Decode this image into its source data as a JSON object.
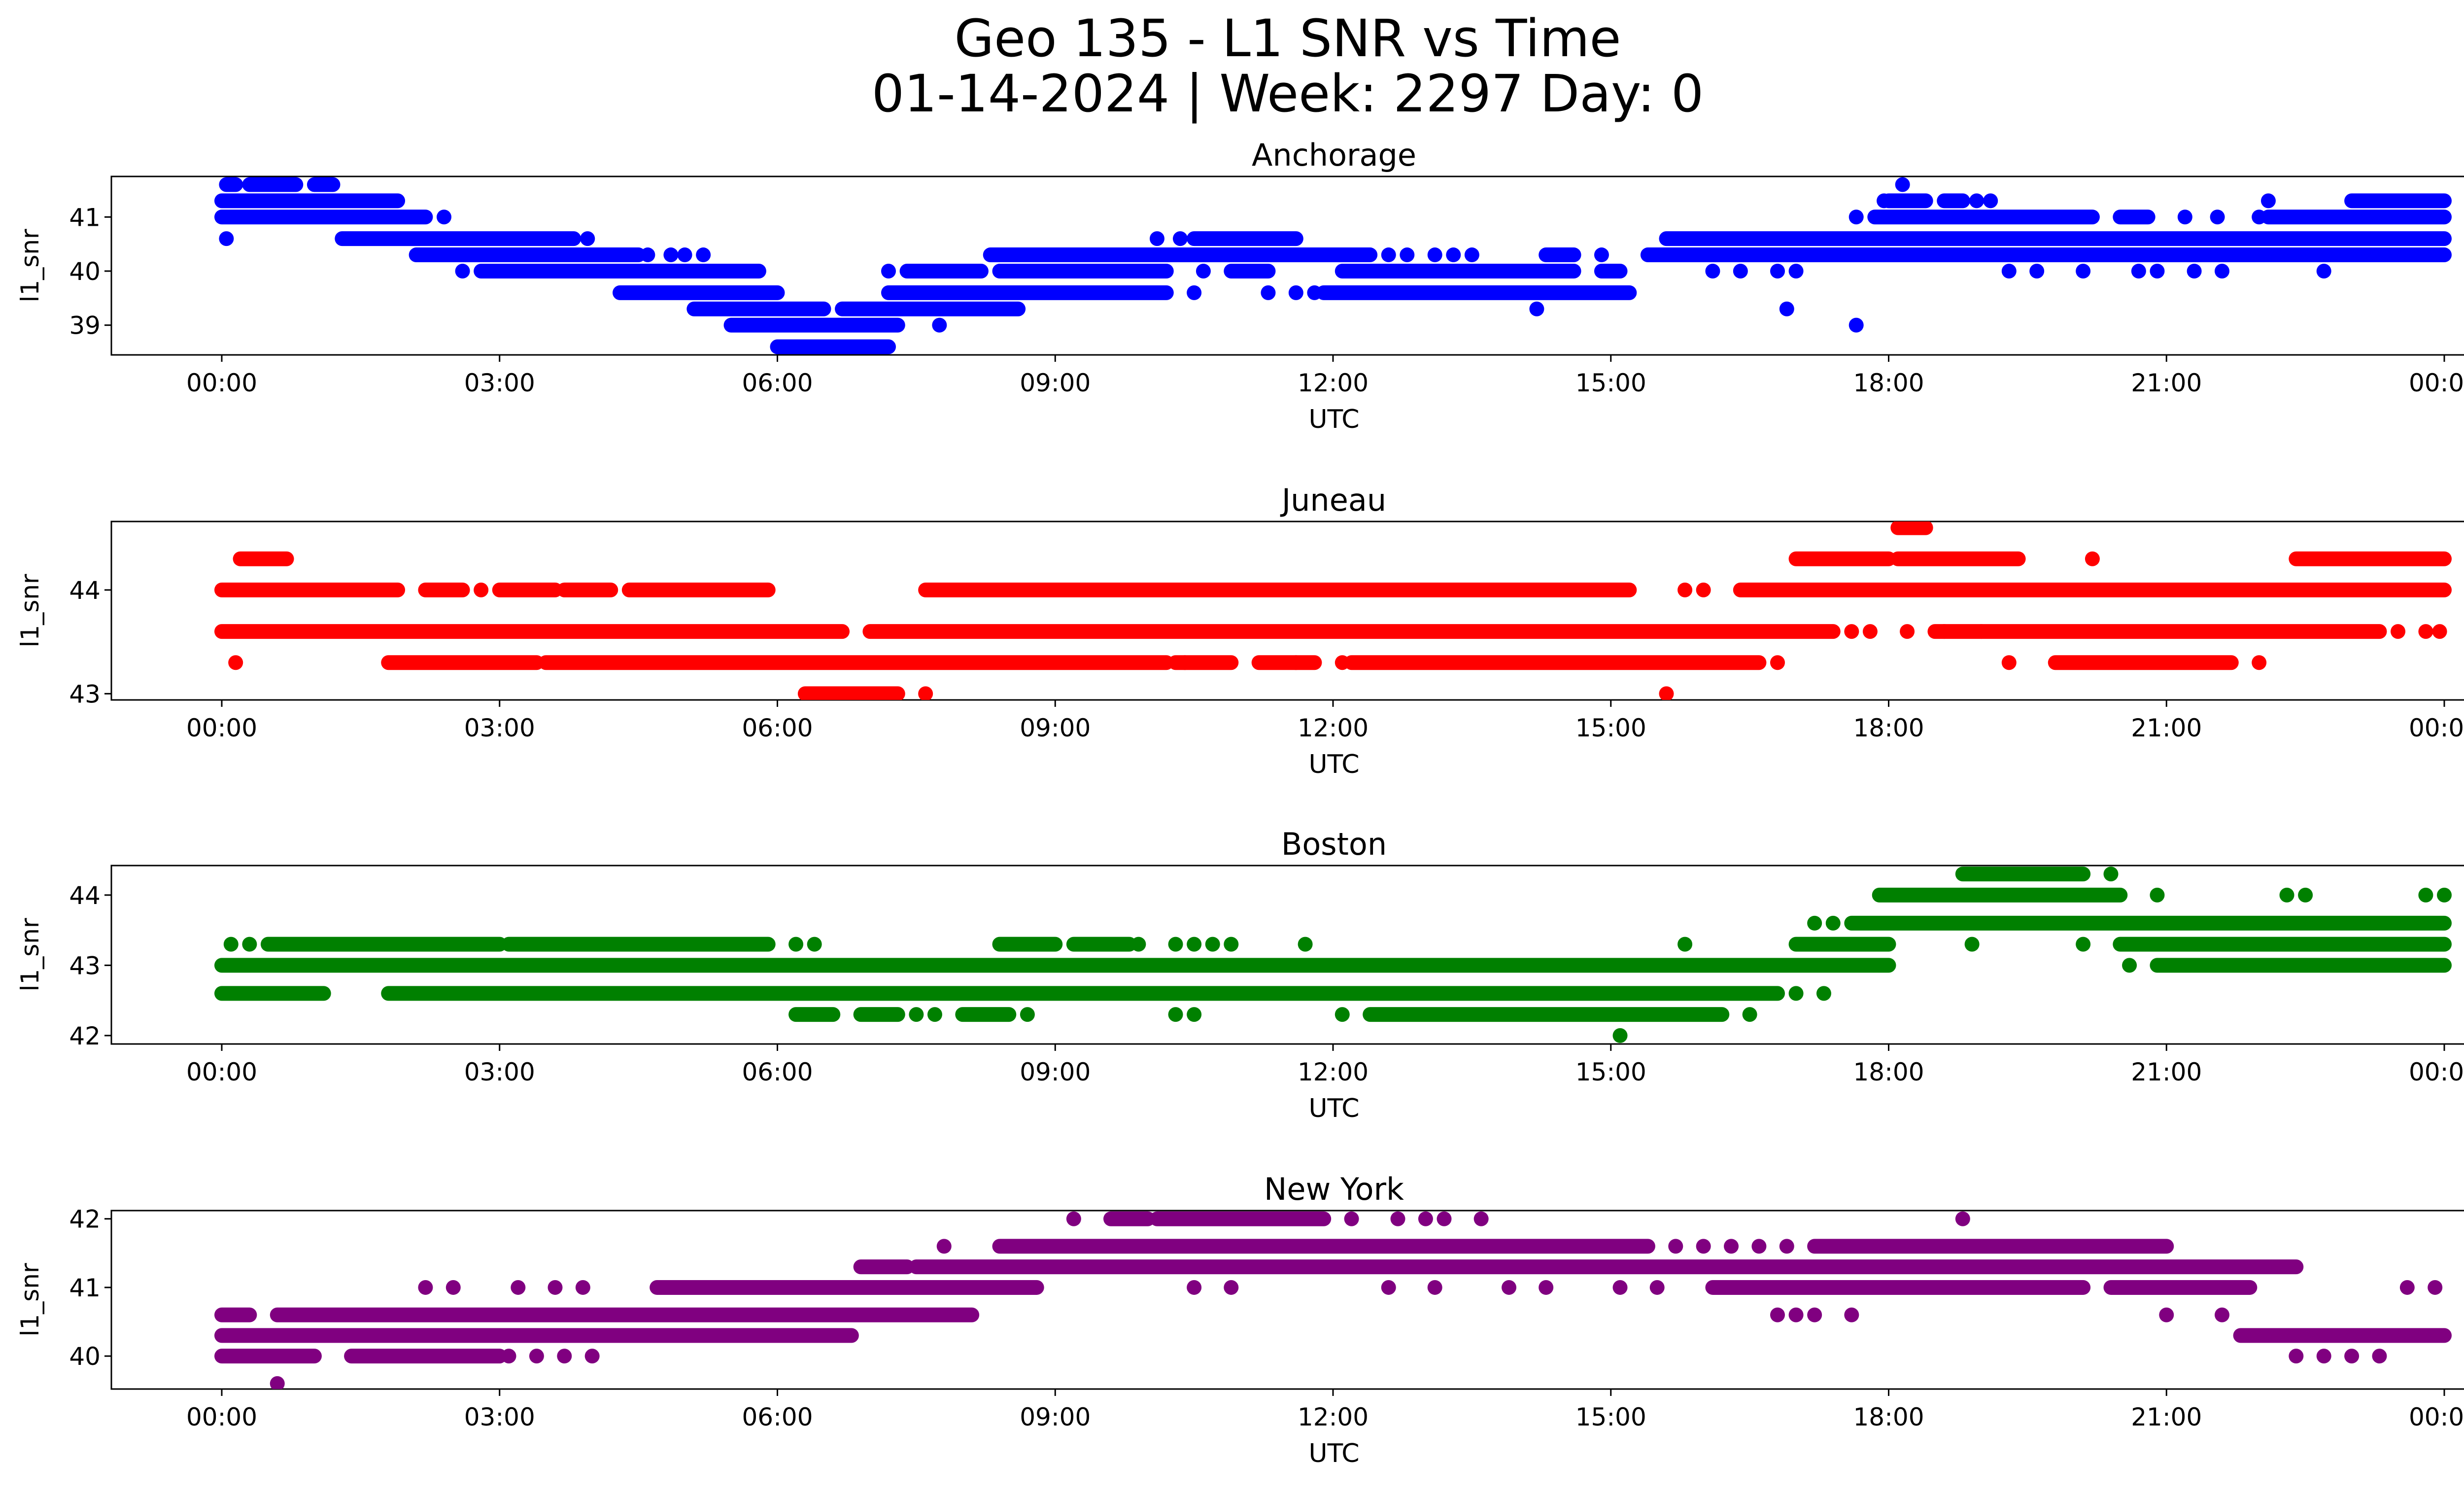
{
  "figure": {
    "title_line1": "Geo 135 - L1 SNR vs Time",
    "title_line2": "01-14-2024 | Week: 2297 Day: 0"
  },
  "chart_data": [
    {
      "type": "scatter",
      "title": "Anchorage",
      "xlabel": "UTC",
      "ylabel": "l1_snr",
      "color": "#0000ff",
      "x_ticks": [
        "00:00",
        "03:00",
        "06:00",
        "09:00",
        "12:00",
        "15:00",
        "18:00",
        "21:00",
        "00:00"
      ],
      "y_ticks": [
        39,
        40,
        41
      ],
      "ylim": [
        38.45,
        41.75
      ],
      "grid": false,
      "series": [
        {
          "rows": [
            {
              "y": 41.6,
              "ranges": [
                [
                  0.05,
                  0.15
                ],
                [
                  0.3,
                  0.8
                ],
                [
                  1.0,
                  1.2
                ]
              ],
              "points": [
                18.15
              ]
            },
            {
              "y": 41.3,
              "ranges": [
                [
                  0.0,
                  1.9
                ],
                [
                  18.0,
                  18.4
                ],
                [
                  18.6,
                  18.8
                ],
                [
                  23.0,
                  24.0
                ]
              ],
              "points": [
                17.95,
                18.95,
                19.1,
                22.1
              ]
            },
            {
              "y": 41.0,
              "ranges": [
                [
                  0.0,
                  2.2
                ],
                [
                  17.85,
                  20.2
                ],
                [
                  20.5,
                  20.8
                ],
                [
                  22.1,
                  24.0
                ]
              ],
              "points": [
                2.4,
                17.65,
                21.2,
                21.55,
                22.0
              ]
            },
            {
              "y": 40.6,
              "ranges": [
                [
                  1.3,
                  3.8
                ],
                [
                  10.5,
                  11.6
                ],
                [
                  15.6,
                  24.0
                ]
              ],
              "points": [
                0.05,
                3.95,
                10.1,
                10.35
              ]
            },
            {
              "y": 40.3,
              "ranges": [
                [
                  2.1,
                  4.5
                ],
                [
                  8.3,
                  12.4
                ],
                [
                  14.3,
                  14.6
                ],
                [
                  15.4,
                  24.0
                ]
              ],
              "points": [
                4.6,
                4.85,
                5.0,
                5.2,
                12.6,
                12.8,
                13.1,
                13.3,
                13.5,
                14.9
              ]
            },
            {
              "y": 40.0,
              "ranges": [
                [
                  2.8,
                  5.8
                ],
                [
                  7.4,
                  8.2
                ],
                [
                  8.4,
                  10.2
                ],
                [
                  10.9,
                  11.3
                ],
                [
                  12.1,
                  14.6
                ],
                [
                  14.9,
                  15.1
                ]
              ],
              "points": [
                2.6,
                7.2,
                10.6,
                12.4,
                16.1,
                16.4,
                16.8,
                17.0,
                19.3,
                19.6,
                20.1,
                20.7,
                20.9,
                21.3,
                21.6,
                22.7
              ]
            },
            {
              "y": 39.6,
              "ranges": [
                [
                  4.3,
                  6.0
                ],
                [
                  7.2,
                  10.2
                ],
                [
                  11.9,
                  15.2
                ]
              ],
              "points": [
                10.5,
                11.3,
                11.6,
                11.8
              ]
            },
            {
              "y": 39.3,
              "ranges": [
                [
                  5.1,
                  6.5
                ],
                [
                  6.7,
                  8.6
                ]
              ],
              "points": [
                14.2,
                16.9
              ]
            },
            {
              "y": 39.0,
              "ranges": [
                [
                  5.5,
                  7.3
                ]
              ],
              "points": [
                7.75,
                17.65
              ]
            },
            {
              "y": 38.6,
              "ranges": [
                [
                  6.0,
                  7.2
                ]
              ],
              "points": []
            }
          ]
        }
      ]
    },
    {
      "type": "scatter",
      "title": "Juneau",
      "xlabel": "UTC",
      "ylabel": "l1_snr",
      "color": "#ff0000",
      "x_ticks": [
        "00:00",
        "03:00",
        "06:00",
        "09:00",
        "12:00",
        "15:00",
        "18:00",
        "21:00",
        "00:00"
      ],
      "y_ticks": [
        43,
        44
      ],
      "ylim": [
        42.94,
        44.66
      ],
      "grid": false,
      "series": [
        {
          "rows": [
            {
              "y": 44.6,
              "ranges": [
                [
                  18.1,
                  18.4
                ]
              ],
              "points": []
            },
            {
              "y": 44.3,
              "ranges": [
                [
                  0.2,
                  0.7
                ],
                [
                  17.0,
                  18.0
                ],
                [
                  18.1,
                  19.4
                ],
                [
                  22.4,
                  24.0
                ]
              ],
              "points": [
                20.2
              ]
            },
            {
              "y": 44.0,
              "ranges": [
                [
                  0.0,
                  1.9
                ],
                [
                  2.2,
                  2.6
                ],
                [
                  3.0,
                  3.6
                ],
                [
                  3.7,
                  4.2
                ],
                [
                  4.4,
                  5.9
                ],
                [
                  7.6,
                  15.2
                ],
                [
                  16.4,
                  24.0
                ]
              ],
              "points": [
                2.8,
                15.8,
                16.0
              ]
            },
            {
              "y": 43.6,
              "ranges": [
                [
                  0.0,
                  6.7
                ],
                [
                  7.0,
                  17.4
                ],
                [
                  18.5,
                  23.3
                ]
              ],
              "points": [
                17.6,
                17.8,
                18.2,
                18.6,
                19.0,
                23.5,
                23.8,
                23.95
              ]
            },
            {
              "y": 43.3,
              "ranges": [
                [
                  1.8,
                  3.4
                ],
                [
                  3.5,
                  10.2
                ],
                [
                  10.3,
                  10.9
                ],
                [
                  11.2,
                  11.8
                ],
                [
                  12.2,
                  16.6
                ],
                [
                  19.8,
                  21.7
                ]
              ],
              "points": [
                0.15,
                10.4,
                11.6,
                12.1,
                16.8,
                19.3,
                22.0
              ]
            },
            {
              "y": 43.0,
              "ranges": [
                [
                  6.3,
                  7.3
                ]
              ],
              "points": [
                7.6,
                15.6
              ]
            }
          ]
        }
      ]
    },
    {
      "type": "scatter",
      "title": "Boston",
      "xlabel": "UTC",
      "ylabel": "l1_snr",
      "color": "#008000",
      "x_ticks": [
        "00:00",
        "03:00",
        "06:00",
        "09:00",
        "12:00",
        "15:00",
        "18:00",
        "21:00",
        "00:00"
      ],
      "y_ticks": [
        42,
        43,
        44
      ],
      "ylim": [
        41.88,
        44.42
      ],
      "grid": false,
      "series": [
        {
          "rows": [
            {
              "y": 44.3,
              "ranges": [
                [
                  18.8,
                  20.1
                ]
              ],
              "points": [
                20.4
              ]
            },
            {
              "y": 44.0,
              "ranges": [
                [
                  17.9,
                  20.5
                ]
              ],
              "points": [
                20.9,
                22.3,
                22.5,
                23.8,
                24.0
              ]
            },
            {
              "y": 43.6,
              "ranges": [
                [
                  17.6,
                  24.0
                ]
              ],
              "points": [
                17.2,
                17.4
              ]
            },
            {
              "y": 43.3,
              "ranges": [
                [
                  0.5,
                  3.0
                ],
                [
                  3.1,
                  5.9
                ],
                [
                  8.4,
                  9.0
                ],
                [
                  9.2,
                  9.8
                ],
                [
                  17.0,
                  18.0
                ],
                [
                  20.5,
                  24.0
                ]
              ],
              "points": [
                0.1,
                0.3,
                6.2,
                6.4,
                9.9,
                10.3,
                10.5,
                10.7,
                10.9,
                11.7,
                15.8,
                18.9,
                20.1
              ]
            },
            {
              "y": 43.0,
              "ranges": [
                [
                  0.0,
                  18.0
                ],
                [
                  20.9,
                  24.0
                ]
              ],
              "points": [
                20.6
              ]
            },
            {
              "y": 42.6,
              "ranges": [
                [
                  0.0,
                  1.1
                ],
                [
                  1.8,
                  16.8
                ]
              ],
              "points": [
                17.0,
                17.3
              ]
            },
            {
              "y": 42.3,
              "ranges": [
                [
                  6.2,
                  6.6
                ],
                [
                  6.9,
                  7.3
                ],
                [
                  8.0,
                  8.5
                ],
                [
                  12.4,
                  16.2
                ]
              ],
              "points": [
                7.5,
                7.7,
                8.7,
                10.3,
                10.5,
                12.1,
                16.5
              ]
            },
            {
              "y": 42.0,
              "ranges": [],
              "points": [
                15.1
              ]
            }
          ]
        }
      ]
    },
    {
      "type": "scatter",
      "title": "New York",
      "xlabel": "UTC",
      "ylabel": "l1_snr",
      "color": "#800080",
      "x_ticks": [
        "00:00",
        "03:00",
        "06:00",
        "09:00",
        "12:00",
        "15:00",
        "18:00",
        "21:00",
        "00:00"
      ],
      "y_ticks": [
        40,
        41,
        42
      ],
      "ylim": [
        39.52,
        42.12
      ],
      "grid": false,
      "series": [
        {
          "rows": [
            {
              "y": 42.0,
              "ranges": [
                [
                  9.6,
                  10.0
                ],
                [
                  10.1,
                  11.9
                ]
              ],
              "points": [
                9.2,
                12.2,
                12.7,
                13.0,
                13.2,
                13.6,
                18.8
              ]
            },
            {
              "y": 41.6,
              "ranges": [
                [
                  8.4,
                  15.4
                ],
                [
                  17.2,
                  21.0
                ]
              ],
              "points": [
                7.8,
                15.7,
                16.0,
                16.3,
                16.6,
                16.9
              ]
            },
            {
              "y": 41.3,
              "ranges": [
                [
                  6.9,
                  7.4
                ],
                [
                  7.5,
                  22.4
                ]
              ],
              "points": []
            },
            {
              "y": 41.0,
              "ranges": [
                [
                  4.7,
                  8.8
                ],
                [
                  16.1,
                  20.1
                ],
                [
                  20.4,
                  21.9
                ]
              ],
              "points": [
                2.2,
                2.5,
                3.2,
                3.6,
                3.9,
                10.5,
                10.9,
                12.6,
                13.1,
                13.9,
                14.3,
                15.1,
                15.5,
                23.6,
                23.9
              ]
            },
            {
              "y": 40.6,
              "ranges": [
                [
                  0.0,
                  0.3
                ],
                [
                  0.6,
                  8.1
                ]
              ],
              "points": [
                16.8,
                17.0,
                17.2,
                17.6,
                21.0,
                21.6
              ]
            },
            {
              "y": 40.3,
              "ranges": [
                [
                  0.0,
                  6.8
                ],
                [
                  21.8,
                  24.0
                ]
              ],
              "points": []
            },
            {
              "y": 40.0,
              "ranges": [
                [
                  0.0,
                  1.0
                ],
                [
                  1.4,
                  3.0
                ]
              ],
              "points": [
                3.1,
                3.4,
                3.7,
                4.0,
                22.4,
                22.7,
                23.0,
                23.3
              ]
            },
            {
              "y": 39.6,
              "ranges": [],
              "points": [
                0.6
              ]
            }
          ]
        }
      ]
    }
  ]
}
